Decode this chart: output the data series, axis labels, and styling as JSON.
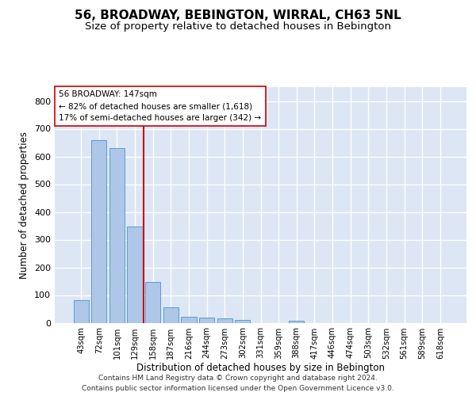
{
  "title": "56, BROADWAY, BEBINGTON, WIRRAL, CH63 5NL",
  "subtitle": "Size of property relative to detached houses in Bebington",
  "xlabel": "Distribution of detached houses by size in Bebington",
  "ylabel": "Number of detached properties",
  "bar_labels": [
    "43sqm",
    "72sqm",
    "101sqm",
    "129sqm",
    "158sqm",
    "187sqm",
    "216sqm",
    "244sqm",
    "273sqm",
    "302sqm",
    "331sqm",
    "359sqm",
    "388sqm",
    "417sqm",
    "446sqm",
    "474sqm",
    "503sqm",
    "532sqm",
    "561sqm",
    "589sqm",
    "618sqm"
  ],
  "bar_values": [
    82,
    660,
    630,
    347,
    147,
    57,
    22,
    18,
    15,
    10,
    0,
    0,
    8,
    0,
    0,
    0,
    0,
    0,
    0,
    0,
    0
  ],
  "bar_color": "#aec6e8",
  "bar_edge_color": "#5b9bd5",
  "background_color": "#dce6f5",
  "grid_color": "#ffffff",
  "ylim": [
    0,
    850
  ],
  "yticks": [
    0,
    100,
    200,
    300,
    400,
    500,
    600,
    700,
    800
  ],
  "property_bin_index": 4,
  "annotation_text": "56 BROADWAY: 147sqm\n← 82% of detached houses are smaller (1,618)\n17% of semi-detached houses are larger (342) →",
  "vline_color": "#cc0000",
  "annotation_box_color": "#ffffff",
  "annotation_box_edge": "#cc0000",
  "footer_text": "Contains HM Land Registry data © Crown copyright and database right 2024.\nContains public sector information licensed under the Open Government Licence v3.0.",
  "title_fontsize": 11,
  "subtitle_fontsize": 9.5,
  "xlabel_fontsize": 8.5,
  "ylabel_fontsize": 8.5,
  "annot_fontsize": 7.5,
  "footer_fontsize": 6.5
}
